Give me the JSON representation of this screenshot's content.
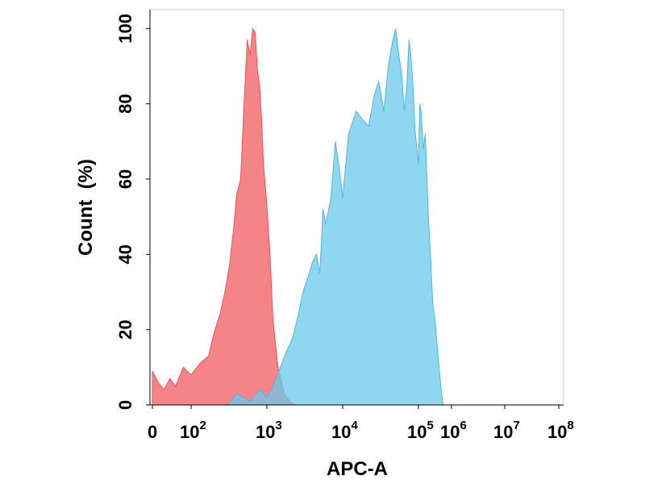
{
  "chart_data": {
    "type": "area",
    "title": "",
    "xlabel": "APC-A",
    "ylabel": "Count  (%)",
    "x_scale": "log",
    "xlim": [
      0,
      100000000
    ],
    "ylim": [
      0,
      105
    ],
    "x_ticks": [
      {
        "value": 0,
        "base": "0",
        "exp": ""
      },
      {
        "value": 100,
        "base": "10",
        "exp": "2"
      },
      {
        "value": 1000,
        "base": "10",
        "exp": "3"
      },
      {
        "value": 10000,
        "base": "10",
        "exp": "4"
      },
      {
        "value": 100000,
        "base": "10",
        "exp": "5"
      },
      {
        "value": 1000000,
        "base": "10",
        "exp": "6"
      },
      {
        "value": 10000000,
        "base": "10",
        "exp": "7"
      },
      {
        "value": 100000000,
        "base": "10",
        "exp": "8"
      }
    ],
    "y_ticks": [
      "0",
      "20",
      "40",
      "60",
      "80",
      "100"
    ],
    "grid": false,
    "legend": "none",
    "series": [
      {
        "color": "#f47a7d",
        "x": [
          0,
          15,
          30,
          45,
          60,
          80,
          100,
          130,
          170,
          200,
          240,
          280,
          320,
          360,
          400,
          450,
          500,
          550,
          600,
          650,
          700,
          750,
          800,
          850,
          900,
          1000,
          1100,
          1200,
          1400,
          1700,
          2000,
          2300
        ],
        "y": [
          9,
          6,
          4,
          7,
          5,
          10,
          8,
          11,
          13,
          19,
          24,
          30,
          37,
          46,
          56,
          60,
          80,
          97,
          93,
          100,
          99,
          89,
          85,
          76,
          64,
          53,
          40,
          23,
          10,
          3,
          1,
          0
        ]
      },
      {
        "color": "#69c8ec",
        "x": [
          300,
          400,
          600,
          800,
          1000,
          1200,
          1500,
          1800,
          2200,
          2600,
          3000,
          3500,
          4000,
          4500,
          5000,
          5500,
          6000,
          7000,
          8000,
          9000,
          10000,
          12000,
          15000,
          18000,
          22000,
          26000,
          30000,
          35000,
          40000,
          45000,
          50000,
          55000,
          60000,
          65000,
          70000,
          75000,
          80000,
          85000,
          90000,
          100000,
          110000,
          120000,
          140000,
          160000,
          180000,
          200000,
          230000,
          270000,
          320000,
          400000,
          500000,
          560000
        ],
        "y": [
          0,
          3,
          1,
          4,
          2,
          5,
          10,
          14,
          18,
          24,
          30,
          34,
          38,
          40,
          35,
          52,
          48,
          55,
          70,
          63,
          55,
          72,
          78,
          76,
          74,
          82,
          86,
          78,
          90,
          96,
          100,
          93,
          88,
          78,
          84,
          97,
          92,
          84,
          73,
          64,
          80,
          78,
          68,
          72,
          60,
          50,
          40,
          27,
          22,
          12,
          3,
          0
        ]
      }
    ]
  }
}
